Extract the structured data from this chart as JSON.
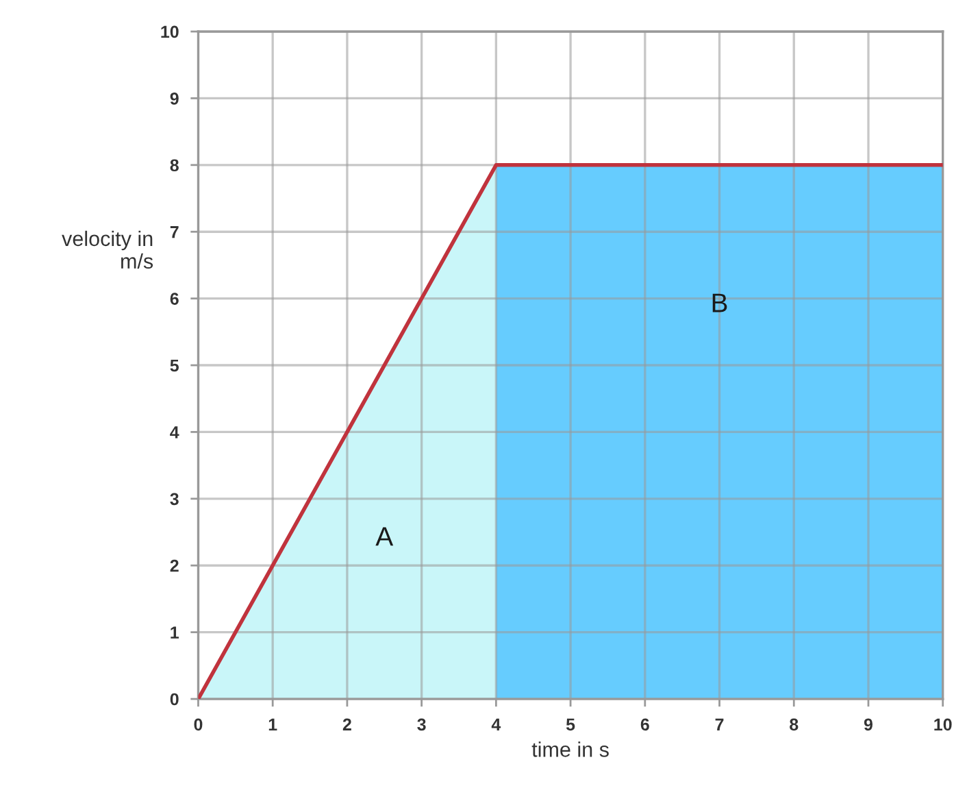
{
  "chart_data": {
    "type": "line",
    "xlabel": "time in s",
    "ylabel": "velocity in\nm/s",
    "xlim": [
      0,
      10
    ],
    "ylim": [
      0,
      10
    ],
    "xticks": [
      0,
      1,
      2,
      3,
      4,
      5,
      6,
      7,
      8,
      9,
      10
    ],
    "yticks": [
      0,
      1,
      2,
      3,
      4,
      5,
      6,
      7,
      8,
      9,
      10
    ],
    "grid": true,
    "series": [
      {
        "type": "area",
        "name": "A",
        "color": "#c9f6f9",
        "x": [
          0,
          4
        ],
        "values": [
          0,
          8
        ]
      },
      {
        "type": "area",
        "name": "B",
        "color": "#66ccfe",
        "x": [
          4,
          10
        ],
        "values": [
          8,
          8
        ]
      },
      {
        "color": "#c0333d",
        "x": [
          0,
          4,
          10
        ],
        "values": [
          0,
          8,
          8
        ]
      }
    ]
  }
}
